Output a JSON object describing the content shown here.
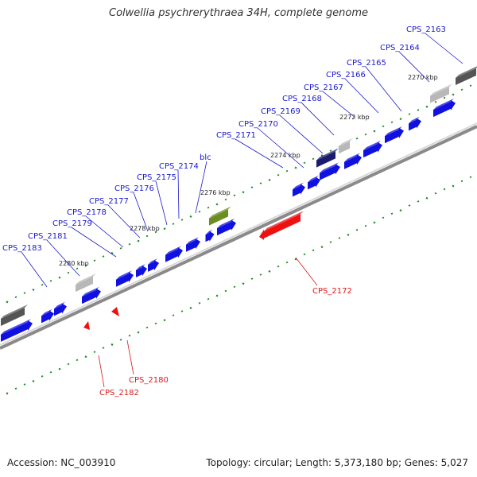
{
  "title": "Colwellia psychrerythraea 34H, complete genome",
  "footer": {
    "accession": "Accession: NC_003910",
    "stats": "Topology: circular; Length: 5,373,180 bp; Genes: 5,027"
  },
  "scale_labels": [
    "2270 kbp",
    "2272 kbp",
    "2274 kbp",
    "2276 kbp",
    "2278 kbp",
    "2280 kbp"
  ],
  "gene_labels_blue": [
    "CPS_2163",
    "CPS_2164",
    "CPS_2165",
    "CPS_2166",
    "CPS_2167",
    "CPS_2168",
    "CPS_2169",
    "CPS_2170",
    "CPS_2171",
    "blc",
    "CPS_2174",
    "CPS_2175",
    "CPS_2176",
    "CPS_2177",
    "CPS_2178",
    "CPS_2179",
    "CPS_2181",
    "CPS_2183"
  ],
  "gene_labels_red": [
    "CPS_2172",
    "CPS_2180",
    "CPS_2182"
  ],
  "colors": {
    "forward_cds": "#1010e0",
    "reverse_cds": "#ee1111",
    "rna_or_pseudo": "#b8b8b8",
    "dark_feature": "#555555",
    "navy_feature": "#1c1c6e",
    "olive_feature": "#6b8e23",
    "backbone": "#8a8a8a",
    "tick_marks": "#1f8f1f",
    "blue_label": "#1a1ad0",
    "red_label": "#d81b1b"
  }
}
